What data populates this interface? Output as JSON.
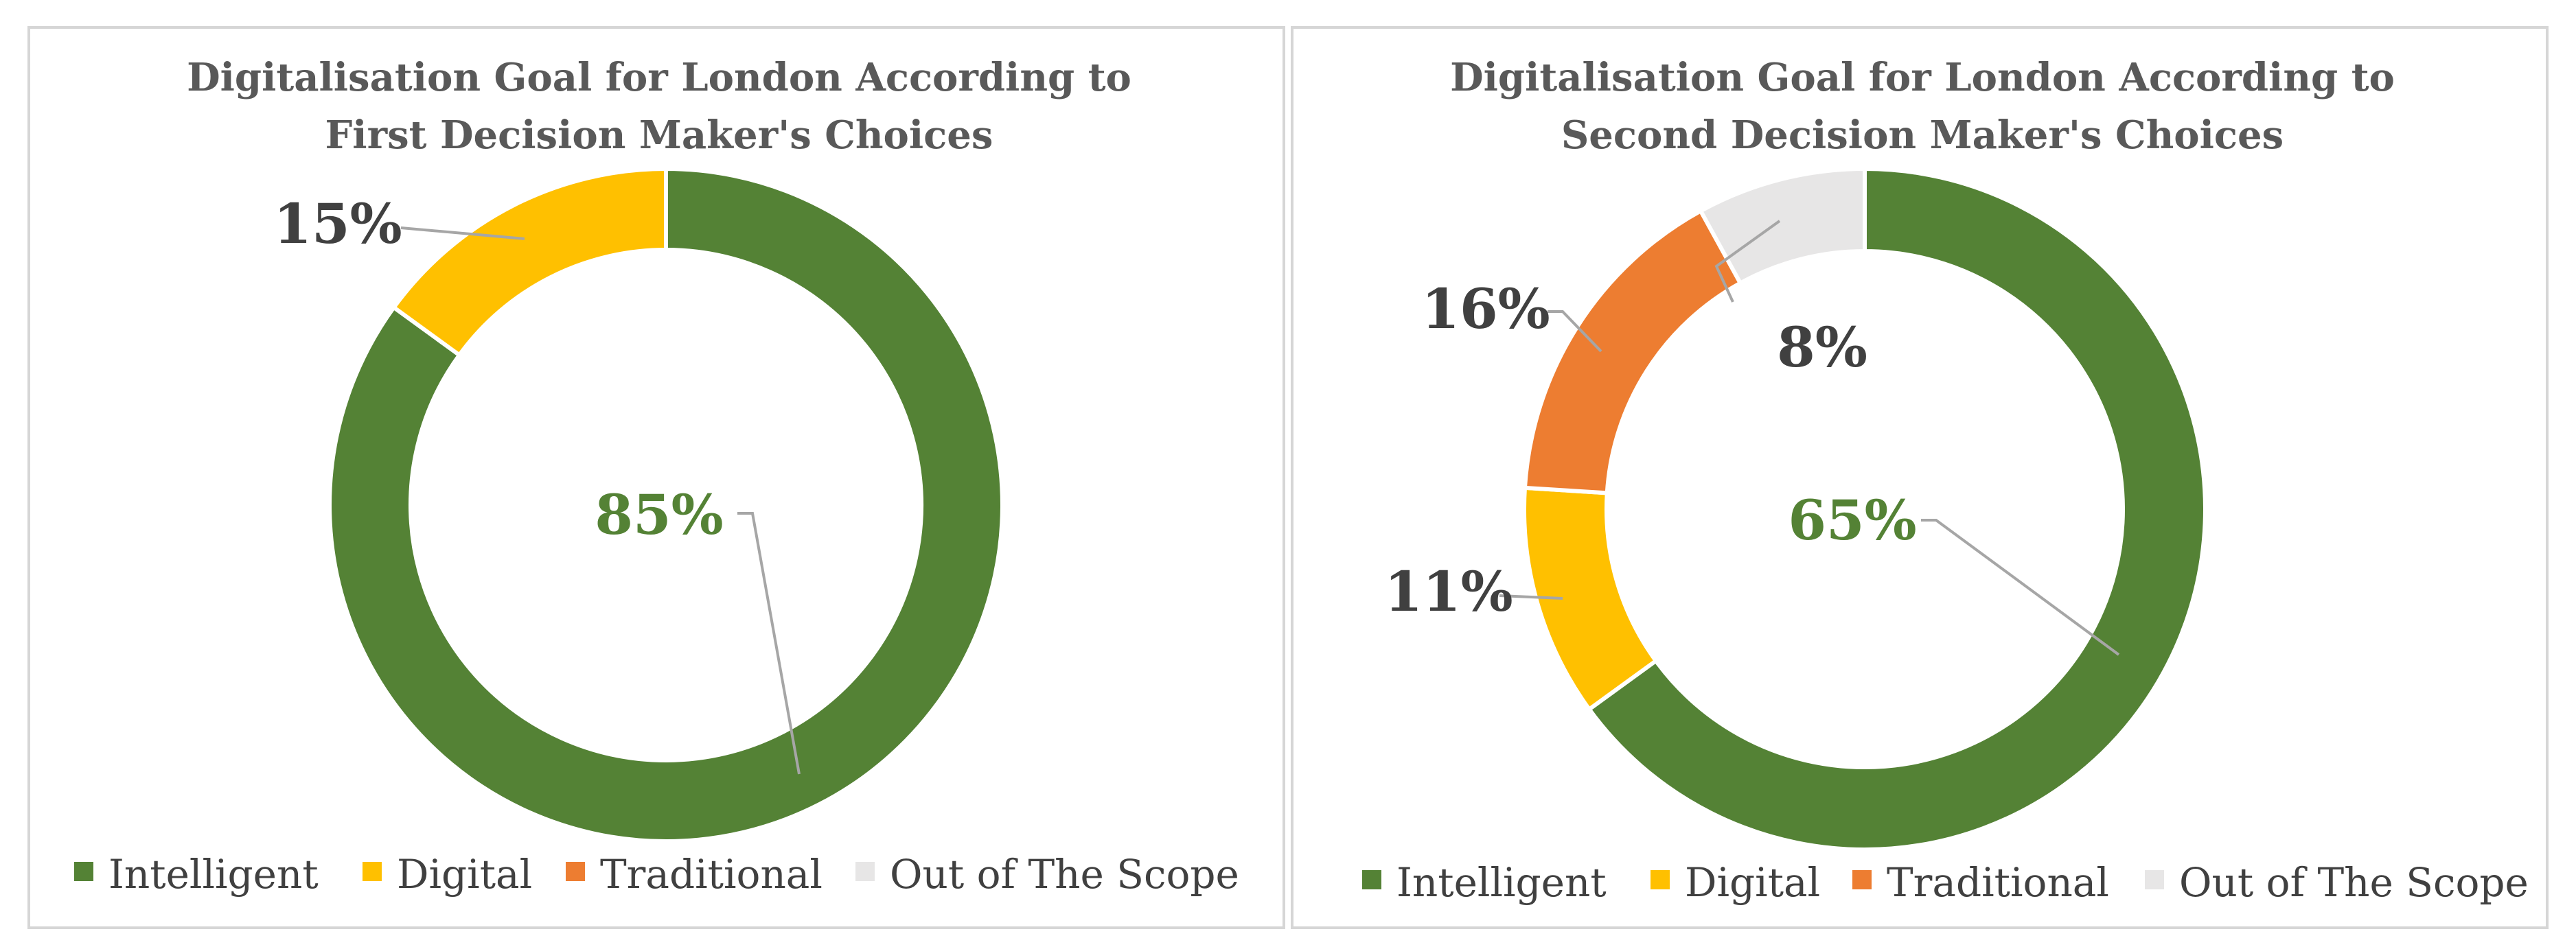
{
  "colors": {
    "intelligent": "#548235",
    "digital": "#FFC000",
    "traditional": "#ED7D31",
    "out_of_scope": "#E7E6E6",
    "label_dark": "#404040",
    "leader_line": "#A6A6A6"
  },
  "chart_data": [
    {
      "type": "pie",
      "variant": "doughnut",
      "title_lines": [
        "Digitalisation Goal for London According to",
        "First Decision Maker's Choices"
      ],
      "categories": [
        "Intelligent",
        "Digital",
        "Traditional",
        "Out of The Scope"
      ],
      "values": [
        85,
        15,
        0,
        0
      ],
      "labels": [
        "85%",
        "15%",
        "",
        ""
      ],
      "legend": {
        "position": "bottom",
        "entries": [
          "Intelligent",
          "Digital",
          "Traditional",
          "Out of The Scope"
        ]
      }
    },
    {
      "type": "pie",
      "variant": "doughnut",
      "title_lines": [
        "Digitalisation Goal for London According to",
        "Second Decision Maker's Choices"
      ],
      "categories": [
        "Intelligent",
        "Digital",
        "Traditional",
        "Out of The Scope"
      ],
      "values": [
        65,
        11,
        16,
        8
      ],
      "labels": [
        "65%",
        "11%",
        "16%",
        "8%"
      ],
      "legend": {
        "position": "bottom",
        "entries": [
          "Intelligent",
          "Digital",
          "Traditional",
          "Out of The Scope"
        ]
      }
    }
  ]
}
